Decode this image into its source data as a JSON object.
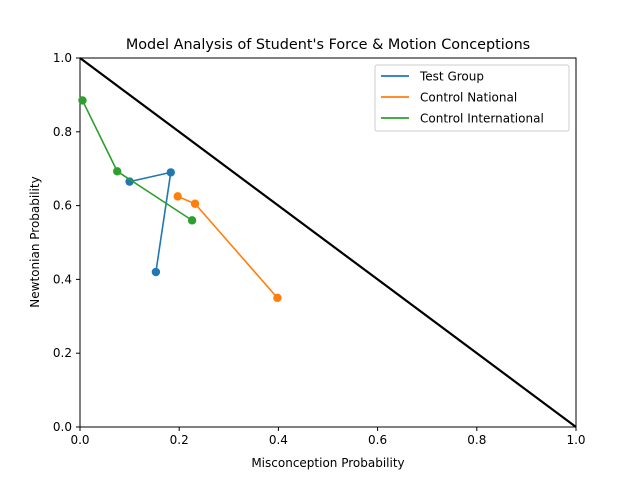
{
  "chart_data": {
    "type": "line",
    "title": "Model Analysis of Student's Force & Motion Conceptions",
    "xlabel": "Misconception Probability",
    "ylabel": "Newtonian Probability",
    "xlim": [
      0.0,
      1.0
    ],
    "ylim": [
      0.0,
      1.0
    ],
    "xticks": [
      "0.0",
      "0.2",
      "0.4",
      "0.6",
      "0.8",
      "1.0"
    ],
    "yticks": [
      "0.0",
      "0.2",
      "0.4",
      "0.6",
      "0.8",
      "1.0"
    ],
    "grid": false,
    "legend_position": "top-right",
    "reference_line": {
      "points": [
        [
          0.0,
          1.0
        ],
        [
          1.0,
          0.0
        ]
      ],
      "color": "#000000"
    },
    "series": [
      {
        "name": "Test Group",
        "color": "#1f77b4",
        "points": [
          [
            0.153,
            0.42
          ],
          [
            0.183,
            0.69
          ],
          [
            0.1,
            0.665
          ]
        ]
      },
      {
        "name": "Control National",
        "color": "#ff7f0e",
        "points": [
          [
            0.197,
            0.625
          ],
          [
            0.232,
            0.605
          ],
          [
            0.398,
            0.35
          ]
        ]
      },
      {
        "name": "Control International",
        "color": "#2ca02c",
        "points": [
          [
            0.005,
            0.885
          ],
          [
            0.075,
            0.693
          ],
          [
            0.226,
            0.56
          ]
        ]
      }
    ]
  }
}
